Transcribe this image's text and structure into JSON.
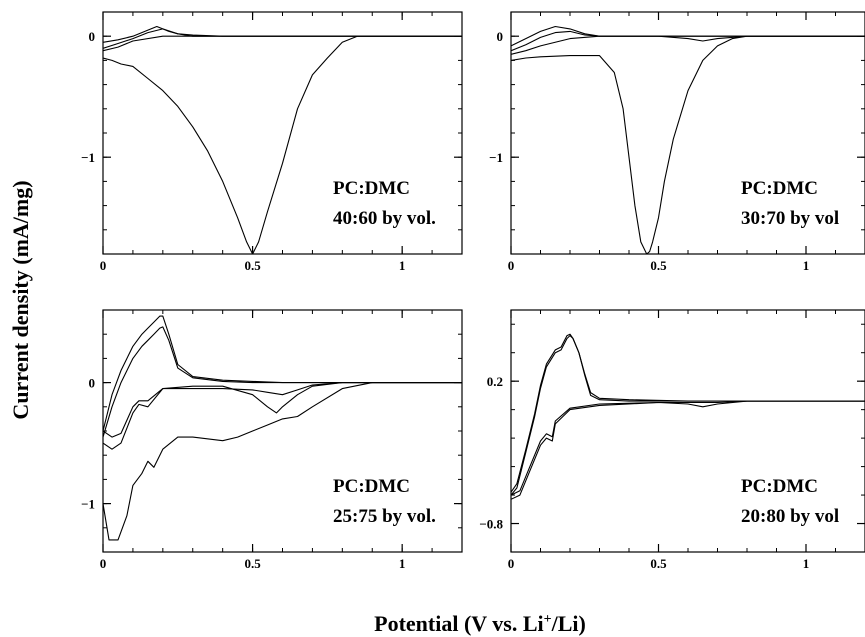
{
  "figure": {
    "xlabel": "Potential (V vs. Li",
    "xlabel_sup": "+",
    "xlabel_tail": "/Li)",
    "ylabel": "Current density (mA/mg)"
  },
  "chart_data": [
    {
      "type": "line",
      "annotation_line1": "PC:DMC",
      "annotation_line2": "40:60 by vol.",
      "xlim": [
        0,
        1.2
      ],
      "ylim": [
        -1.8,
        0.2
      ],
      "xticks": [
        {
          "v": 0,
          "label": "0"
        },
        {
          "v": 0.5,
          "label": "0.5"
        },
        {
          "v": 1,
          "label": "1"
        }
      ],
      "yticks": [
        {
          "v": 0,
          "label": "0"
        },
        {
          "v": -1,
          "label": "-1"
        }
      ],
      "series": [
        {
          "x": [
            0,
            0.03,
            0.06,
            0.1,
            0.15,
            0.2,
            0.25,
            0.3,
            0.35,
            0.4,
            0.45,
            0.48,
            0.5,
            0.52,
            0.55,
            0.6,
            0.65,
            0.7,
            0.75,
            0.8,
            0.85,
            0.9,
            1.0,
            1.2
          ],
          "y": [
            -0.18,
            -0.2,
            -0.23,
            -0.25,
            -0.35,
            -0.45,
            -0.58,
            -0.75,
            -0.95,
            -1.2,
            -1.5,
            -1.7,
            -1.8,
            -1.7,
            -1.45,
            -1.05,
            -0.6,
            -0.32,
            -0.18,
            -0.05,
            0,
            0,
            0,
            0
          ]
        },
        {
          "x": [
            0,
            0.05,
            0.1,
            0.15,
            0.18,
            0.2,
            0.22,
            0.25,
            0.3,
            0.4,
            0.6,
            0.8,
            1.0,
            1.2
          ],
          "y": [
            -0.05,
            -0.03,
            0.0,
            0.05,
            0.08,
            0.06,
            0.04,
            0.02,
            0.01,
            0,
            0,
            0,
            0,
            0
          ]
        },
        {
          "x": [
            0,
            0.05,
            0.1,
            0.15,
            0.2,
            0.25,
            0.3,
            0.5,
            0.8,
            1.2
          ],
          "y": [
            -0.1,
            -0.06,
            -0.02,
            0.03,
            0.06,
            0.02,
            0,
            0,
            0,
            0
          ]
        },
        {
          "x": [
            0,
            0.05,
            0.1,
            0.2,
            0.4,
            0.8,
            1.2
          ],
          "y": [
            -0.12,
            -0.09,
            -0.04,
            0,
            0,
            0,
            0
          ]
        }
      ]
    },
    {
      "type": "line",
      "annotation_line1": "PC:DMC",
      "annotation_line2": "30:70 by vol",
      "xlim": [
        0,
        1.2
      ],
      "ylim": [
        -1.8,
        0.2
      ],
      "xticks": [
        {
          "v": 0,
          "label": "0"
        },
        {
          "v": 0.5,
          "label": "0.5"
        },
        {
          "v": 1,
          "label": "1"
        }
      ],
      "yticks": [
        {
          "v": 0,
          "label": "0"
        },
        {
          "v": -1,
          "label": "-1"
        }
      ],
      "series": [
        {
          "x": [
            0,
            0.05,
            0.1,
            0.2,
            0.3,
            0.35,
            0.38,
            0.4,
            0.42,
            0.44,
            0.46,
            0.47,
            0.48,
            0.5,
            0.52,
            0.55,
            0.6,
            0.65,
            0.7,
            0.75,
            0.8,
            0.9,
            1.2
          ],
          "y": [
            -0.2,
            -0.18,
            -0.17,
            -0.16,
            -0.16,
            -0.3,
            -0.6,
            -1.0,
            -1.4,
            -1.7,
            -1.8,
            -1.78,
            -1.7,
            -1.5,
            -1.2,
            -0.85,
            -0.45,
            -0.2,
            -0.08,
            -0.02,
            0,
            0,
            0
          ]
        },
        {
          "x": [
            0,
            0.05,
            0.1,
            0.15,
            0.2,
            0.25,
            0.3,
            0.5,
            0.8,
            1.2
          ],
          "y": [
            -0.08,
            -0.02,
            0.04,
            0.08,
            0.06,
            0.02,
            0,
            0,
            0,
            0
          ]
        },
        {
          "x": [
            0,
            0.05,
            0.1,
            0.15,
            0.2,
            0.25,
            0.3,
            0.5,
            0.6,
            0.65,
            0.7,
            0.8,
            1.2
          ],
          "y": [
            -0.12,
            -0.07,
            -0.01,
            0.03,
            0.04,
            0.01,
            0,
            0,
            -0.02,
            -0.04,
            -0.02,
            0,
            0
          ]
        },
        {
          "x": [
            0,
            0.05,
            0.1,
            0.2,
            0.3,
            0.5,
            0.8,
            1.2
          ],
          "y": [
            -0.15,
            -0.12,
            -0.08,
            -0.02,
            0,
            0,
            0,
            0
          ]
        }
      ]
    },
    {
      "type": "line",
      "annotation_line1": "PC:DMC",
      "annotation_line2": "25:75 by vol.",
      "xlim": [
        0,
        1.2
      ],
      "ylim": [
        -1.4,
        0.6
      ],
      "xticks": [
        {
          "v": 0,
          "label": "0"
        },
        {
          "v": 0.5,
          "label": "0.5"
        },
        {
          "v": 1,
          "label": "1"
        }
      ],
      "yticks": [
        {
          "v": 0,
          "label": "0"
        },
        {
          "v": -1,
          "label": "-1"
        }
      ],
      "series": [
        {
          "x": [
            0,
            0.02,
            0.05,
            0.08,
            0.1,
            0.13,
            0.15,
            0.17,
            0.2,
            0.25,
            0.3,
            0.4,
            0.45,
            0.5,
            0.55,
            0.6,
            0.65,
            0.7,
            0.8,
            0.9,
            1.0,
            1.2
          ],
          "y": [
            -1.0,
            -1.3,
            -1.3,
            -1.1,
            -0.85,
            -0.75,
            -0.65,
            -0.7,
            -0.55,
            -0.45,
            -0.45,
            -0.48,
            -0.45,
            -0.4,
            -0.35,
            -0.3,
            -0.28,
            -0.2,
            -0.05,
            0,
            0,
            0
          ]
        },
        {
          "x": [
            0,
            0.03,
            0.06,
            0.1,
            0.13,
            0.15,
            0.17,
            0.19,
            0.2,
            0.22,
            0.25,
            0.3,
            0.4,
            0.5,
            0.6,
            0.8,
            1.0,
            1.2
          ],
          "y": [
            -0.4,
            -0.1,
            0.1,
            0.3,
            0.4,
            0.45,
            0.5,
            0.55,
            0.55,
            0.4,
            0.15,
            0.05,
            0.02,
            0.01,
            0,
            0,
            0,
            0
          ]
        },
        {
          "x": [
            0,
            0.03,
            0.06,
            0.1,
            0.13,
            0.15,
            0.17,
            0.19,
            0.2,
            0.22,
            0.25,
            0.3,
            0.4,
            0.5,
            0.6,
            0.8,
            1.0,
            1.2
          ],
          "y": [
            -0.45,
            -0.2,
            0.0,
            0.2,
            0.3,
            0.35,
            0.4,
            0.45,
            0.46,
            0.35,
            0.12,
            0.04,
            0.01,
            0,
            0,
            0,
            0,
            0
          ]
        },
        {
          "x": [
            0,
            0.03,
            0.06,
            0.1,
            0.12,
            0.15,
            0.2,
            0.3,
            0.4,
            0.5,
            0.55,
            0.58,
            0.6,
            0.65,
            0.7,
            0.8,
            1.2
          ],
          "y": [
            -0.5,
            -0.55,
            -0.5,
            -0.25,
            -0.18,
            -0.2,
            -0.05,
            -0.03,
            -0.03,
            -0.1,
            -0.2,
            -0.25,
            -0.2,
            -0.1,
            -0.03,
            0,
            0
          ]
        },
        {
          "x": [
            0,
            0.03,
            0.06,
            0.1,
            0.12,
            0.15,
            0.2,
            0.3,
            0.4,
            0.5,
            0.55,
            0.6,
            0.65,
            0.7,
            0.8,
            1.2
          ],
          "y": [
            -0.4,
            -0.45,
            -0.42,
            -0.2,
            -0.15,
            -0.15,
            -0.05,
            -0.05,
            -0.05,
            -0.06,
            -0.08,
            -0.1,
            -0.06,
            -0.02,
            0,
            0
          ]
        }
      ]
    },
    {
      "type": "line",
      "annotation_line1": "PC:DMC",
      "annotation_line2": "20:80 by vol",
      "xlim": [
        0,
        1.2
      ],
      "ylim": [
        -1.0,
        0.7
      ],
      "xticks": [
        {
          "v": 0,
          "label": "0"
        },
        {
          "v": 0.5,
          "label": "0.5"
        },
        {
          "v": 1,
          "label": "1"
        }
      ],
      "yticks": [
        {
          "v": 0.2,
          "label": "0.2"
        },
        {
          "v": -0.8,
          "label": "-0.8"
        }
      ],
      "series": [
        {
          "x": [
            0,
            0.02,
            0.05,
            0.08,
            0.1,
            0.12,
            0.15,
            0.17,
            0.19,
            0.2,
            0.21,
            0.23,
            0.25,
            0.27,
            0.3,
            0.4,
            0.6,
            0.8,
            1.0,
            1.2
          ],
          "y": [
            -0.6,
            -0.55,
            -0.3,
            -0.05,
            0.15,
            0.3,
            0.4,
            0.42,
            0.5,
            0.52,
            0.5,
            0.4,
            0.25,
            0.12,
            0.08,
            0.07,
            0.06,
            0.06,
            0.06,
            0.06
          ]
        },
        {
          "x": [
            0,
            0.02,
            0.05,
            0.08,
            0.1,
            0.12,
            0.15,
            0.17,
            0.19,
            0.2,
            0.21,
            0.23,
            0.25,
            0.27,
            0.3,
            0.4,
            0.6,
            0.8,
            1.0,
            1.2
          ],
          "y": [
            -0.58,
            -0.52,
            -0.28,
            -0.03,
            0.17,
            0.32,
            0.42,
            0.44,
            0.52,
            0.53,
            0.5,
            0.4,
            0.24,
            0.1,
            0.07,
            0.06,
            0.06,
            0.06,
            0.06,
            0.06
          ]
        },
        {
          "x": [
            0,
            0.03,
            0.06,
            0.1,
            0.12,
            0.14,
            0.15,
            0.2,
            0.3,
            0.5,
            0.6,
            0.65,
            0.7,
            0.8,
            1.0,
            1.2
          ],
          "y": [
            -0.63,
            -0.6,
            -0.45,
            -0.25,
            -0.2,
            -0.22,
            -0.1,
            0.0,
            0.03,
            0.05,
            0.04,
            0.02,
            0.04,
            0.06,
            0.06,
            0.06
          ]
        },
        {
          "x": [
            0,
            0.03,
            0.06,
            0.1,
            0.12,
            0.14,
            0.15,
            0.2,
            0.3,
            0.5,
            0.7,
            0.8,
            1.0,
            1.2
          ],
          "y": [
            -0.6,
            -0.57,
            -0.42,
            -0.22,
            -0.17,
            -0.19,
            -0.08,
            0.01,
            0.04,
            0.05,
            0.05,
            0.06,
            0.06,
            0.06
          ]
        }
      ]
    }
  ]
}
